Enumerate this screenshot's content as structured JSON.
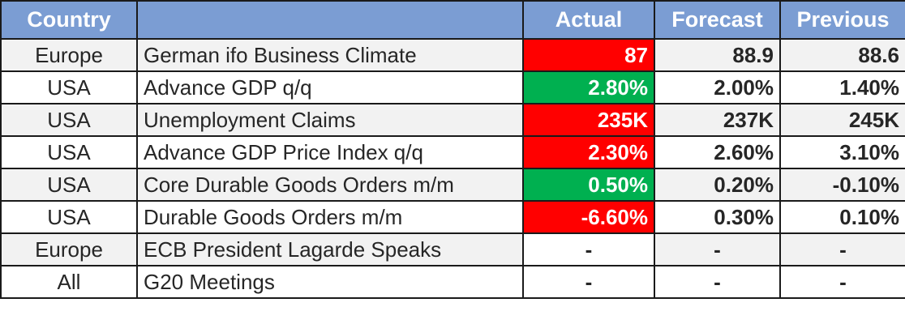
{
  "header": {
    "country": "Country",
    "event": "",
    "actual": "Actual",
    "forecast": "Forecast",
    "previous": "Previous"
  },
  "colors": {
    "header_bg": "#7b9dd3",
    "beat": "#00b050",
    "miss": "#ff0000"
  },
  "rows": [
    {
      "country": "Europe",
      "event": "German ifo Business Climate",
      "actual": "87",
      "forecast": "88.9",
      "previous": "88.6",
      "actual_status": "miss"
    },
    {
      "country": "USA",
      "event": "Advance GDP q/q",
      "actual": "2.80%",
      "forecast": "2.00%",
      "previous": "1.40%",
      "actual_status": "beat"
    },
    {
      "country": "USA",
      "event": "Unemployment Claims",
      "actual": "235K",
      "forecast": "237K",
      "previous": "245K",
      "actual_status": "miss"
    },
    {
      "country": "USA",
      "event": "Advance GDP Price Index q/q",
      "actual": "2.30%",
      "forecast": "2.60%",
      "previous": "3.10%",
      "actual_status": "miss"
    },
    {
      "country": "USA",
      "event": "Core Durable Goods Orders m/m",
      "actual": "0.50%",
      "forecast": "0.20%",
      "previous": "-0.10%",
      "actual_status": "beat"
    },
    {
      "country": "USA",
      "event": "Durable Goods Orders m/m",
      "actual": "-6.60%",
      "forecast": "0.30%",
      "previous": "0.10%",
      "actual_status": "miss"
    },
    {
      "country": "Europe",
      "event": "ECB President Lagarde Speaks",
      "actual": "-",
      "forecast": "-",
      "previous": "-",
      "actual_status": "none"
    },
    {
      "country": "All",
      "event": "G20 Meetings",
      "actual": "-",
      "forecast": "-",
      "previous": "-",
      "actual_status": "none"
    }
  ]
}
